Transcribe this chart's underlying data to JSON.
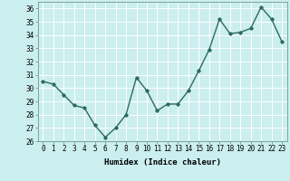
{
  "x": [
    0,
    1,
    2,
    3,
    4,
    5,
    6,
    7,
    8,
    9,
    10,
    11,
    12,
    13,
    14,
    15,
    16,
    17,
    18,
    19,
    20,
    21,
    22,
    23
  ],
  "y": [
    30.5,
    30.3,
    29.5,
    28.7,
    28.5,
    27.2,
    26.3,
    27.0,
    28.0,
    30.8,
    29.8,
    28.3,
    28.8,
    28.8,
    29.8,
    31.3,
    32.9,
    35.2,
    34.1,
    34.2,
    34.5,
    36.1,
    35.2,
    33.5
  ],
  "line_color": "#2d6b5e",
  "bg_color": "#cbeeee",
  "grid_color": "#ffffff",
  "xlabel": "Humidex (Indice chaleur)",
  "ylim": [
    26,
    36.5
  ],
  "yticks": [
    26,
    27,
    28,
    29,
    30,
    31,
    32,
    33,
    34,
    35,
    36
  ],
  "xlim": [
    -0.5,
    23.5
  ],
  "xticks": [
    0,
    1,
    2,
    3,
    4,
    5,
    6,
    7,
    8,
    9,
    10,
    11,
    12,
    13,
    14,
    15,
    16,
    17,
    18,
    19,
    20,
    21,
    22,
    23
  ],
  "xlabel_fontsize": 6.5,
  "tick_fontsize": 5.5,
  "marker": "D",
  "marker_size": 1.8,
  "linewidth": 1.0
}
